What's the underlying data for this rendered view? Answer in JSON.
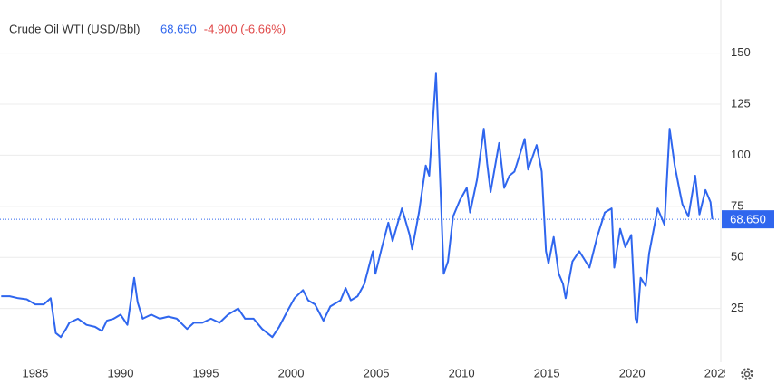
{
  "chart_data": {
    "type": "line",
    "title": "Crude Oil WTI (USD/Bbl)",
    "last_price": "68.650",
    "change": "-4.900 (-6.66%)",
    "last_value_label": "68.650",
    "last_value": 68.65,
    "color": "#2f66ee",
    "change_color": "#e04848",
    "grid": true,
    "xlim": [
      1982.93,
      2025.2
    ],
    "ylim": [
      0,
      176
    ],
    "xticks": [
      1985,
      1990,
      1995,
      2000,
      2005,
      2010,
      2015,
      2020,
      2025
    ],
    "yticks": [
      25,
      50,
      75,
      100,
      125,
      150
    ],
    "x": [
      1983.0,
      1983.5,
      1984.0,
      1984.5,
      1985.0,
      1985.5,
      1985.9,
      1986.2,
      1986.5,
      1986.8,
      1987.0,
      1987.5,
      1988.0,
      1988.5,
      1988.9,
      1989.2,
      1989.6,
      1990.0,
      1990.4,
      1990.8,
      1991.0,
      1991.3,
      1991.8,
      1992.3,
      1992.8,
      1993.3,
      1993.9,
      1994.3,
      1994.8,
      1995.3,
      1995.8,
      1996.3,
      1996.9,
      1997.3,
      1997.8,
      1998.3,
      1998.9,
      1999.3,
      1999.8,
      2000.2,
      2000.7,
      2001.0,
      2001.4,
      2001.9,
      2002.3,
      2002.9,
      2003.2,
      2003.5,
      2003.9,
      2004.3,
      2004.8,
      2004.95,
      2005.3,
      2005.7,
      2005.95,
      2006.5,
      2006.95,
      2007.1,
      2007.5,
      2007.9,
      2008.1,
      2008.5,
      2008.8,
      2008.95,
      2009.2,
      2009.5,
      2009.9,
      2010.3,
      2010.5,
      2010.9,
      2011.3,
      2011.5,
      2011.7,
      2012.2,
      2012.5,
      2012.8,
      2013.1,
      2013.7,
      2013.9,
      2014.4,
      2014.7,
      2014.95,
      2015.1,
      2015.4,
      2015.7,
      2015.95,
      2016.1,
      2016.5,
      2016.9,
      2017.5,
      2017.95,
      2018.4,
      2018.8,
      2018.95,
      2019.3,
      2019.6,
      2019.95,
      2020.2,
      2020.3,
      2020.5,
      2020.8,
      2021.0,
      2021.5,
      2021.9,
      2022.2,
      2022.5,
      2022.8,
      2022.95,
      2023.3,
      2023.7,
      2023.95,
      2024.3,
      2024.6,
      2024.7
    ],
    "series": [
      {
        "name": "Crude Oil WTI",
        "values": [
          31,
          31,
          30,
          29.5,
          27,
          27,
          30,
          13,
          11,
          15,
          18,
          20,
          17,
          16,
          14,
          19,
          20,
          22,
          17,
          40,
          28,
          20,
          22,
          20,
          21,
          20,
          15,
          18,
          18,
          20,
          18,
          22,
          25,
          20,
          20,
          15,
          11,
          16,
          24,
          30,
          34,
          29,
          27,
          19,
          26,
          29,
          35,
          29,
          31,
          37,
          53,
          42,
          54,
          67,
          58,
          74,
          61,
          54,
          72,
          95,
          90,
          140,
          75,
          42,
          48,
          70,
          78,
          84,
          72,
          88,
          113,
          96,
          82,
          106,
          84,
          90,
          92,
          108,
          93,
          105,
          92,
          53,
          47,
          60,
          42,
          37,
          30,
          48,
          53,
          45,
          60,
          72,
          74,
          45,
          64,
          55,
          61,
          20,
          18,
          40,
          36,
          52,
          74,
          66,
          113,
          95,
          82,
          76,
          70,
          90,
          71,
          83,
          77,
          68.65
        ]
      }
    ]
  }
}
